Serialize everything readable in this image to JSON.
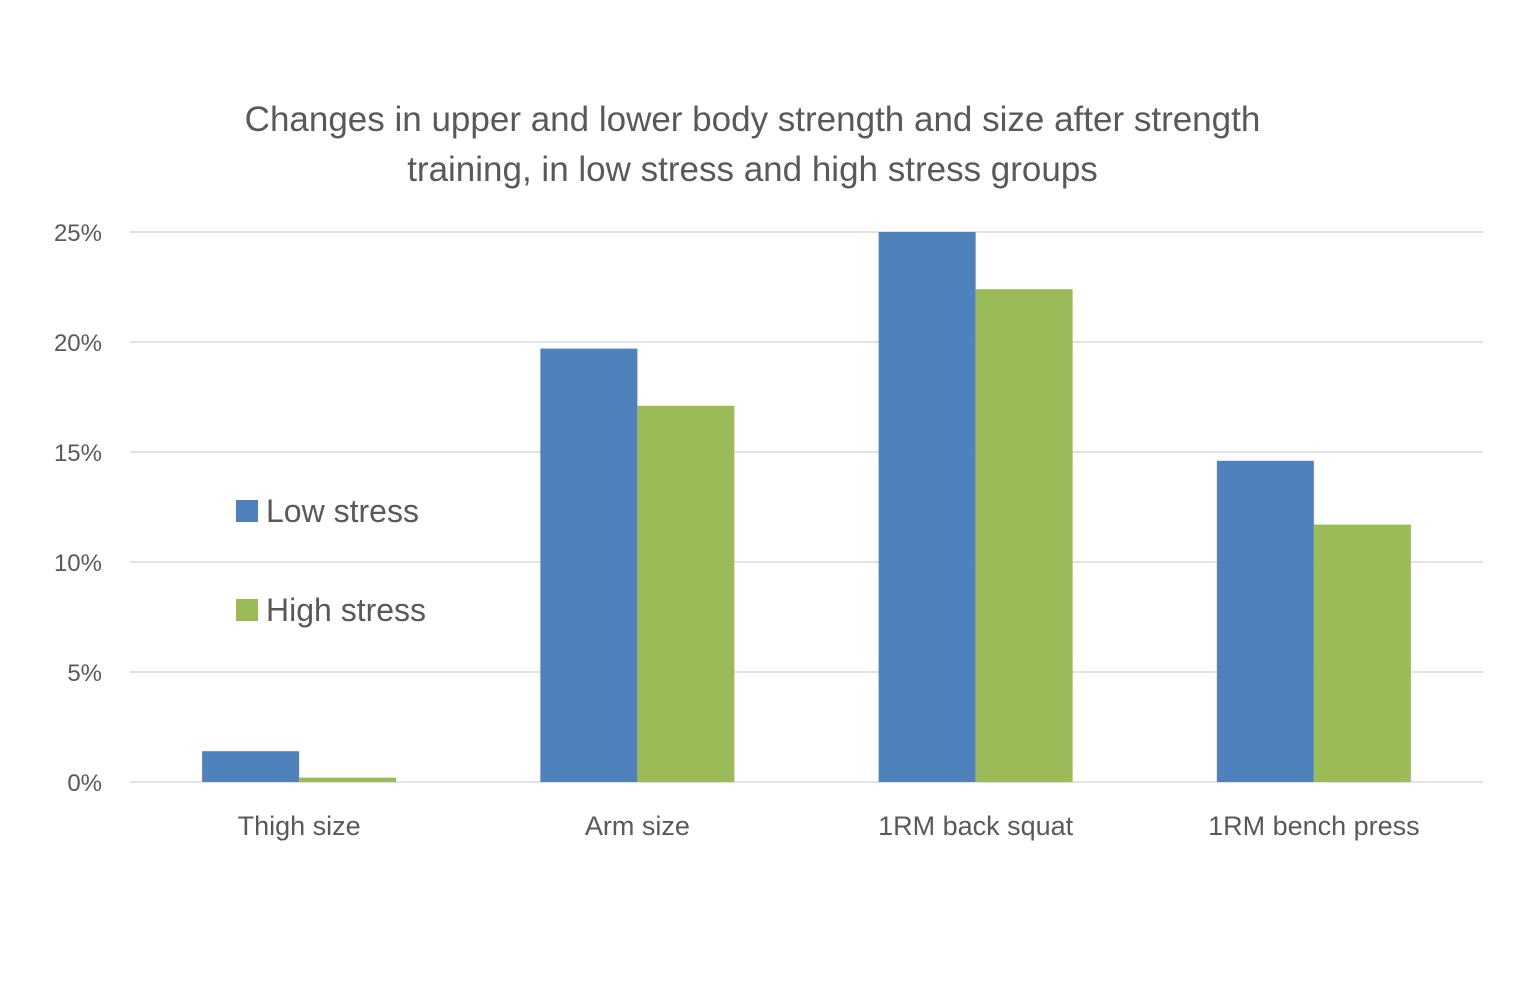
{
  "chart_data": {
    "type": "bar",
    "title": "Changes in upper and lower body strength and size after strength training, in low stress and high stress groups",
    "title_lines": [
      "Changes in upper and lower body strength and size after strength",
      "training, in low stress and high stress groups"
    ],
    "xlabel": "",
    "ylabel": "",
    "categories": [
      "Thigh size",
      "Arm size",
      "1RM back squat",
      "1RM bench press"
    ],
    "series": [
      {
        "name": "Low stress",
        "color": "#4f81bd",
        "values": [
          1.4,
          19.7,
          25.0,
          14.6
        ]
      },
      {
        "name": "High stress",
        "color": "#9bbb59",
        "values": [
          0.2,
          17.1,
          22.4,
          11.7
        ]
      }
    ],
    "ylim": [
      0,
      25
    ],
    "yticks": [
      0,
      5,
      10,
      15,
      20,
      25
    ],
    "ytick_labels": [
      "0%",
      "5%",
      "10%",
      "15%",
      "20%",
      "25%"
    ],
    "grid": true,
    "legend_position": "inside-left",
    "colors": {
      "text": "#595959",
      "gridline": "#d9d9d9",
      "axis": "#d9d9d9"
    }
  }
}
